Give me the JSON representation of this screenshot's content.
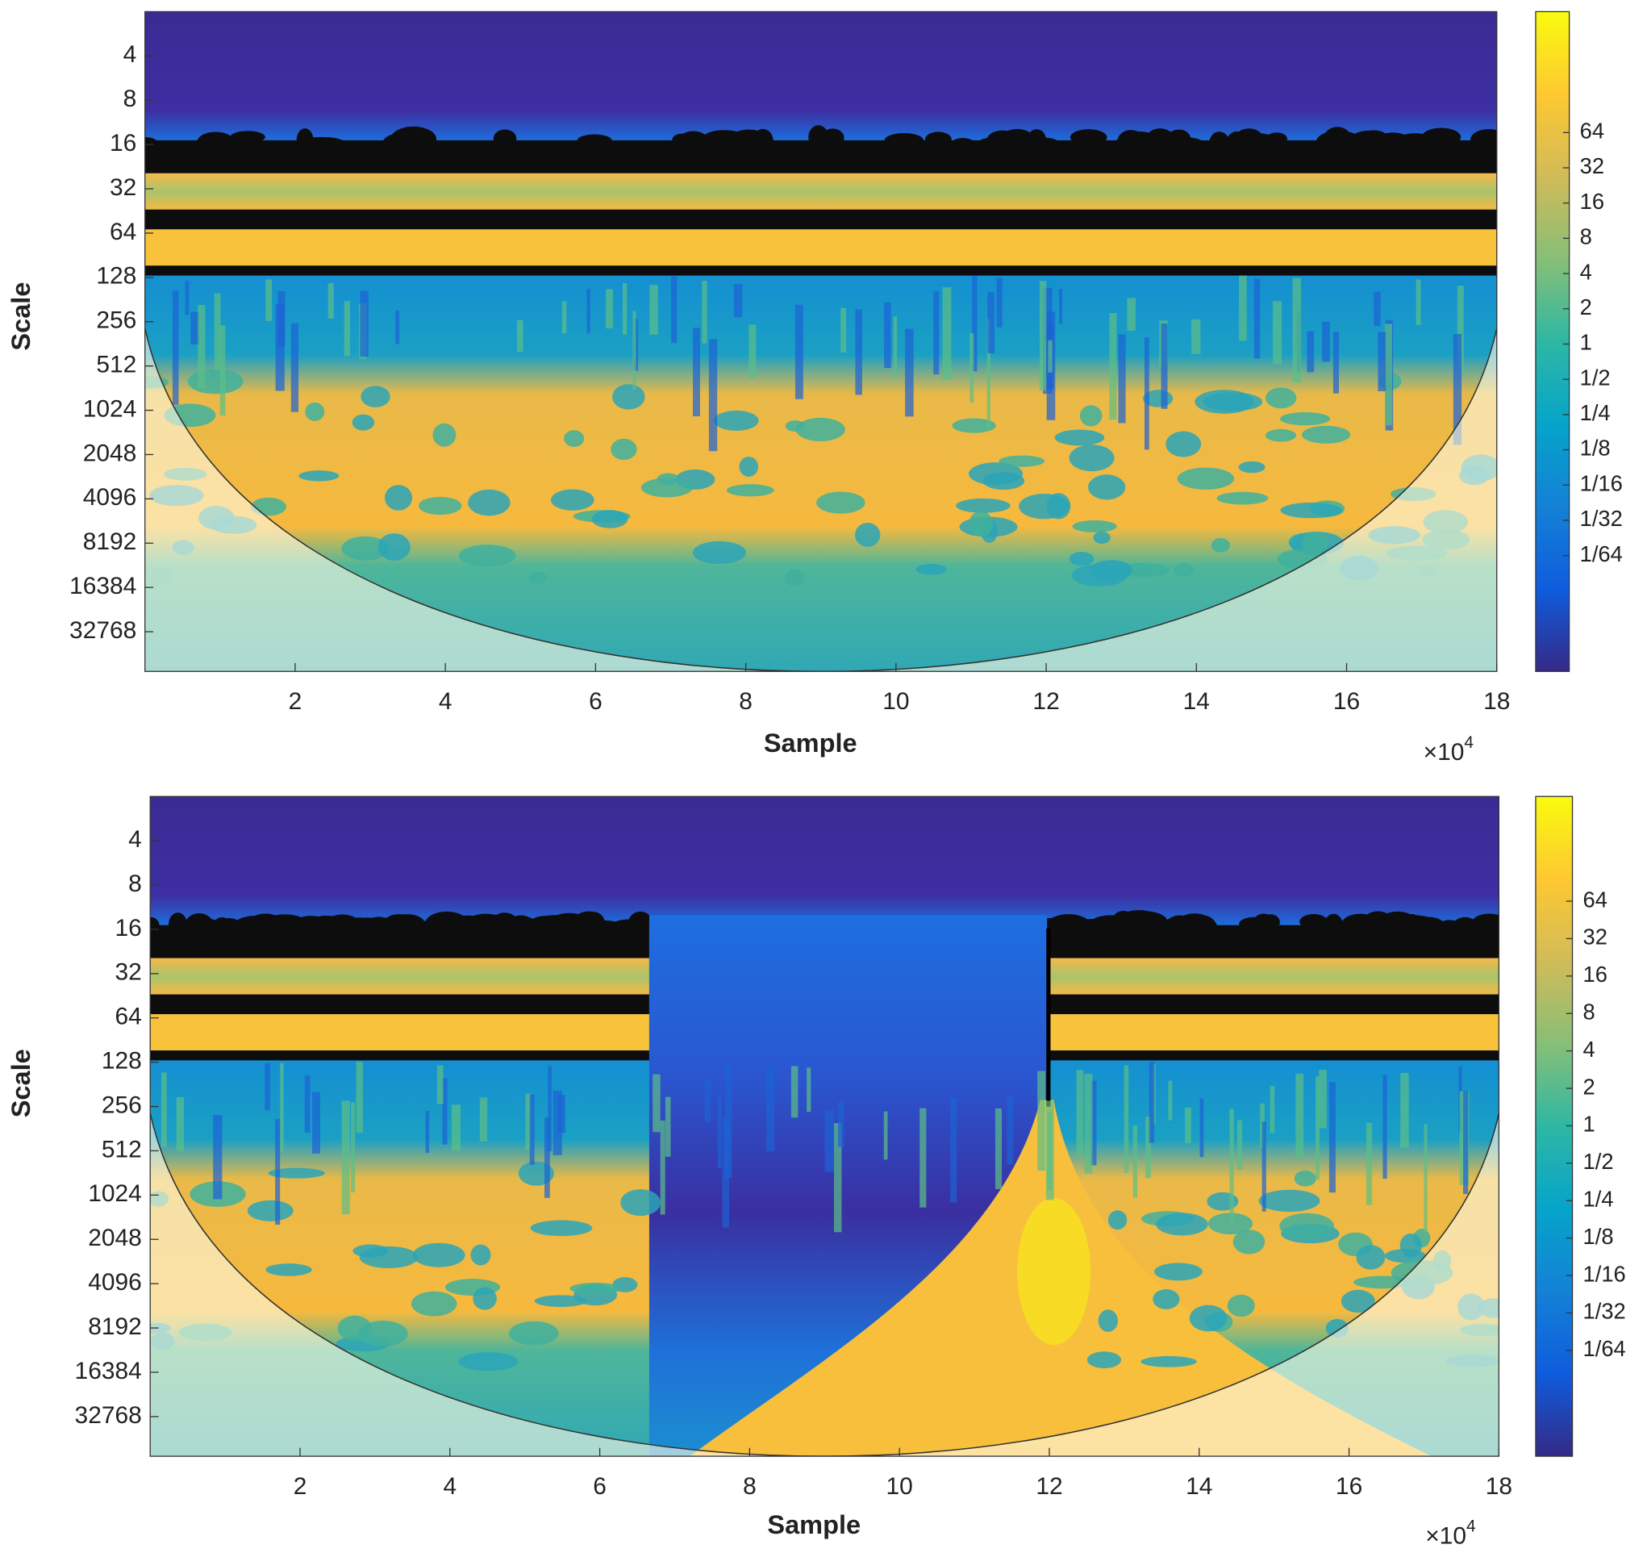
{
  "chart_data": [
    {
      "type": "heatmap",
      "xlabel": "Sample",
      "ylabel": "Scale",
      "x_scale_base": "×10",
      "x_scale_exponent": "4",
      "xlim": [
        0,
        18
      ],
      "xticks": [
        2,
        4,
        6,
        8,
        10,
        12,
        14,
        16,
        18
      ],
      "ylim": [
        2,
        61000
      ],
      "y_log_base": 2,
      "y_reversed": true,
      "yticks": [
        4,
        8,
        16,
        32,
        64,
        128,
        256,
        512,
        1024,
        2048,
        4096,
        8192,
        16384,
        32768
      ],
      "colormap": [
        "#352a87",
        "#0f5cdd",
        "#1481d6",
        "#06a4ca",
        "#2eb7a4",
        "#87bf77",
        "#d1bb59",
        "#fec832",
        "#f9fb0e"
      ],
      "clim": [
        0.0016,
        690
      ],
      "cticks": [
        64,
        32,
        16,
        8,
        4,
        2,
        1,
        {
          "value": 0.5,
          "label": "1/2"
        },
        {
          "value": 0.25,
          "label": "1/4"
        },
        {
          "value": 0.125,
          "label": "1/8"
        },
        {
          "value": 0.0625,
          "label": "1/16"
        },
        {
          "value": 0.03125,
          "label": "1/32"
        },
        {
          "value": 0.015625,
          "label": "1/64"
        }
      ]
    },
    {
      "type": "heatmap",
      "xlabel": "Sample",
      "ylabel": "Scale",
      "x_scale_base": "×10",
      "x_scale_exponent": "4",
      "xlim": [
        0,
        18
      ],
      "xticks": [
        2,
        4,
        6,
        8,
        10,
        12,
        14,
        16,
        18
      ],
      "ylim": [
        2,
        61000
      ],
      "y_log_base": 2,
      "y_reversed": true,
      "yticks": [
        4,
        8,
        16,
        32,
        64,
        128,
        256,
        512,
        1024,
        2048,
        4096,
        8192,
        16384,
        32768
      ],
      "colormap": [
        "#352a87",
        "#0f5cdd",
        "#1481d6",
        "#06a4ca",
        "#2eb7a4",
        "#87bf77",
        "#d1bb59",
        "#fec832",
        "#f9fb0e"
      ],
      "clim": [
        0.0022,
        445
      ],
      "cticks": [
        64,
        32,
        16,
        8,
        4,
        2,
        1,
        {
          "value": 0.5,
          "label": "1/2"
        },
        {
          "value": 0.25,
          "label": "1/4"
        },
        {
          "value": 0.125,
          "label": "1/8"
        },
        {
          "value": 0.0625,
          "label": "1/16"
        },
        {
          "value": 0.03125,
          "label": "1/32"
        },
        {
          "value": 0.015625,
          "label": "1/64"
        }
      ]
    }
  ]
}
